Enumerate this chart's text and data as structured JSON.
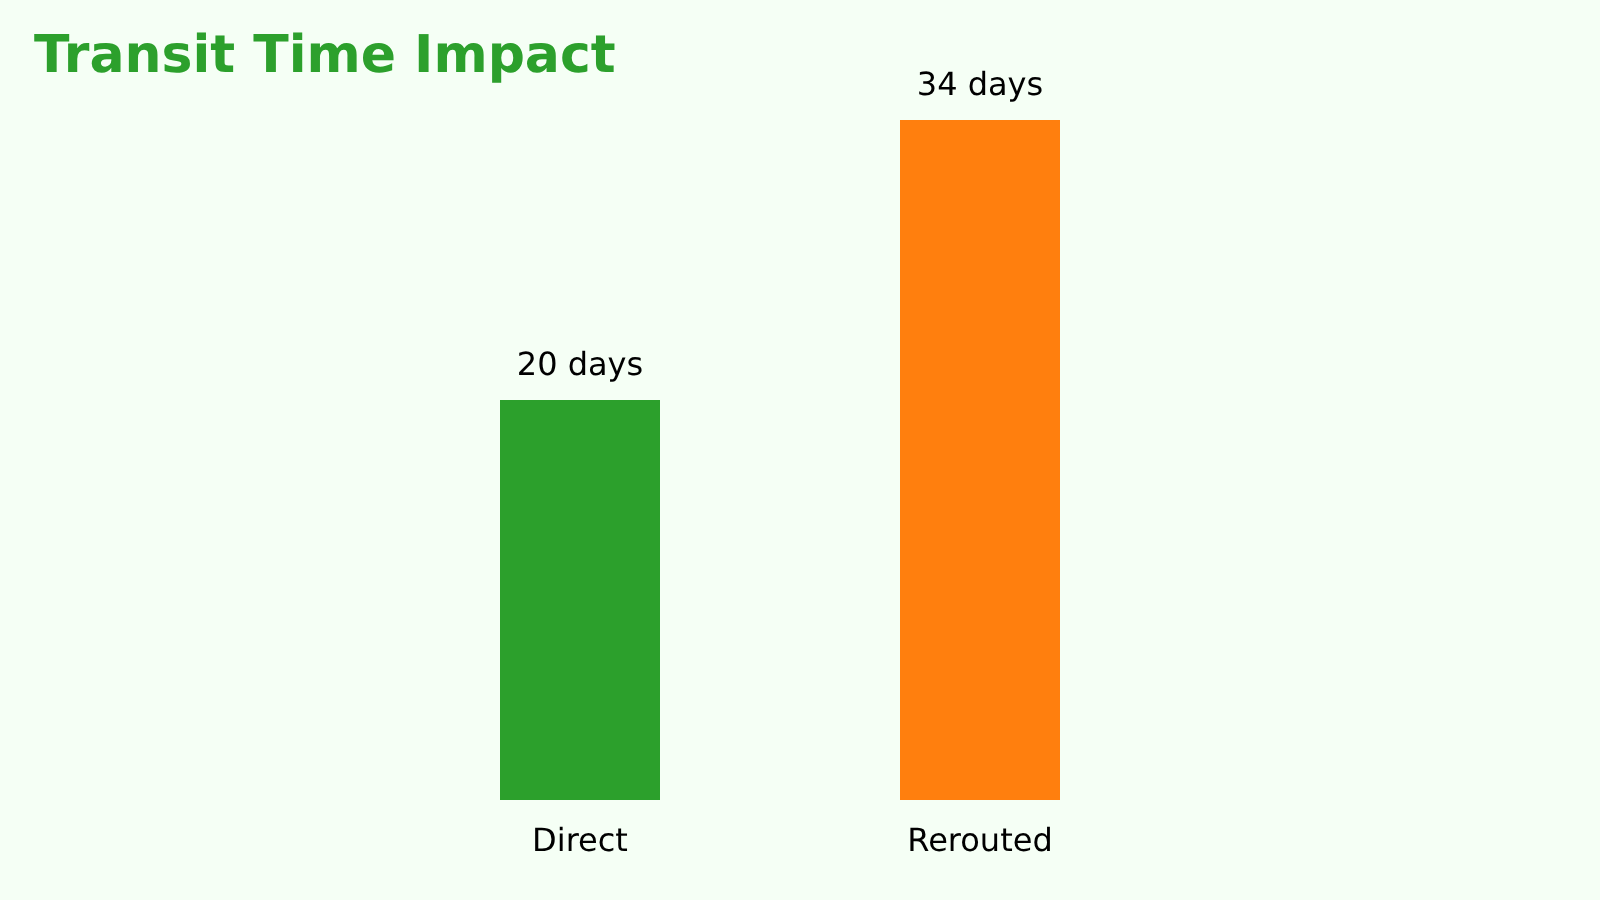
{
  "chart_data": {
    "type": "bar",
    "title": "Transit Time Impact",
    "categories": [
      "Direct",
      "Rerouted"
    ],
    "values": [
      20,
      34
    ],
    "colors": [
      "#2ca02c",
      "#ff7f0e"
    ],
    "value_labels": [
      "20 days",
      "34 days"
    ]
  }
}
